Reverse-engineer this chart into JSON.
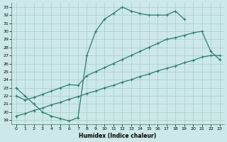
{
  "xlabel": "Humidex (Indice chaleur)",
  "bg_color": "#cce8e8",
  "line_color": "#2e7d6e",
  "grid_color": "#aacccc",
  "curve1_x": [
    0,
    1,
    2,
    3,
    4,
    5,
    6,
    7,
    8,
    9,
    10,
    11,
    12,
    13,
    14,
    15,
    16,
    17,
    18,
    19
  ],
  "curve1_y": [
    23.0,
    22.0,
    21.0,
    20.0,
    19.5,
    19.2,
    18.9,
    19.3,
    27.0,
    30.0,
    31.5,
    32.2,
    33.0,
    32.5,
    32.2,
    32.0,
    32.0,
    32.0,
    32.5,
    31.5
  ],
  "curve2_x": [
    0,
    1,
    2,
    3,
    4,
    5,
    6,
    7,
    8,
    9,
    10,
    11,
    12,
    13,
    14,
    15,
    16,
    17,
    18,
    19,
    20,
    21,
    22,
    23
  ],
  "curve2_y": [
    22.0,
    21.5,
    21.8,
    22.2,
    22.6,
    23.0,
    23.4,
    23.3,
    24.5,
    25.0,
    25.5,
    26.0,
    26.5,
    27.0,
    27.5,
    28.0,
    28.5,
    29.0,
    29.2,
    29.5,
    29.8,
    30.0,
    27.5,
    26.5
  ],
  "curve3_x": [
    0,
    1,
    2,
    3,
    4,
    5,
    6,
    7,
    8,
    9,
    10,
    11,
    12,
    13,
    14,
    15,
    16,
    17,
    18,
    19,
    20,
    21,
    22,
    23
  ],
  "curve3_y": [
    19.5,
    19.8,
    20.2,
    20.5,
    20.9,
    21.2,
    21.6,
    21.9,
    22.3,
    22.6,
    23.0,
    23.3,
    23.7,
    24.0,
    24.4,
    24.7,
    25.1,
    25.4,
    25.7,
    26.1,
    26.4,
    26.8,
    27.0,
    27.0
  ],
  "xlim": [
    -0.5,
    23.5
  ],
  "ylim": [
    18.5,
    33.5
  ],
  "xticks": [
    0,
    1,
    2,
    3,
    4,
    5,
    6,
    7,
    8,
    9,
    10,
    11,
    12,
    13,
    14,
    15,
    16,
    17,
    18,
    19,
    20,
    21,
    22,
    23
  ],
  "yticks": [
    19,
    20,
    21,
    22,
    23,
    24,
    25,
    26,
    27,
    28,
    29,
    30,
    31,
    32,
    33
  ]
}
